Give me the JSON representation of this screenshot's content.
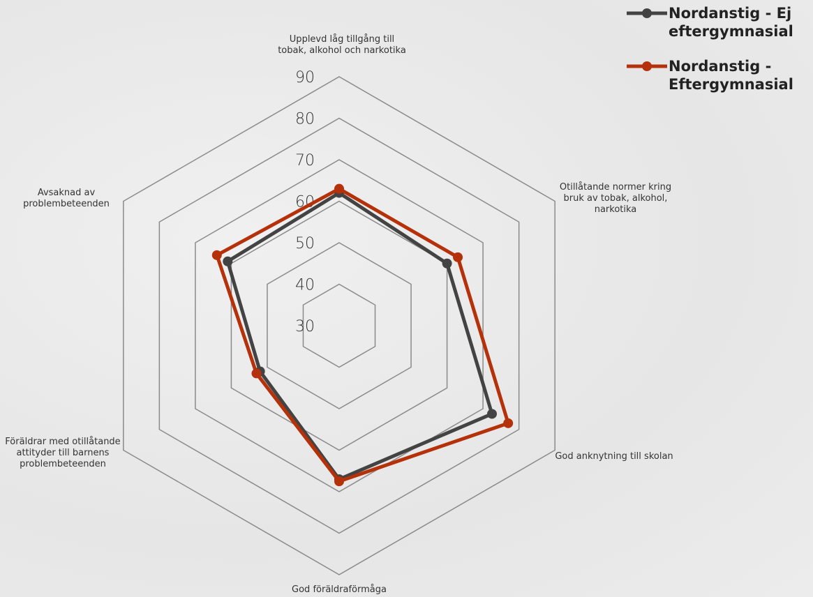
{
  "chart_data": {
    "type": "radar",
    "categories": [
      "Upplevd låg tillgång till tobak, alkohol och narkotika",
      "Otillåtande normer kring bruk av tobak, alkohol, narkotika",
      "God anknytning till skolan",
      "God föräldraförmåga",
      "Föräldrar med otillåtande attityder till barnens problembeteenden",
      "Avsaknad av problembeteenden"
    ],
    "series": [
      {
        "name": "Nordanstig - Ej eftergymnasial",
        "color": "#434343",
        "values": [
          62,
          60,
          72.5,
          67,
          52,
          61
        ]
      },
      {
        "name": "Nordanstig - Eftergymnasial",
        "color": "#b5310a",
        "values": [
          63,
          63,
          77,
          67.5,
          53,
          64
        ]
      }
    ],
    "rlim": [
      30,
      90
    ],
    "rticks": [
      30,
      40,
      50,
      60,
      70,
      80,
      90
    ],
    "grid": true,
    "legend": "top-right"
  }
}
